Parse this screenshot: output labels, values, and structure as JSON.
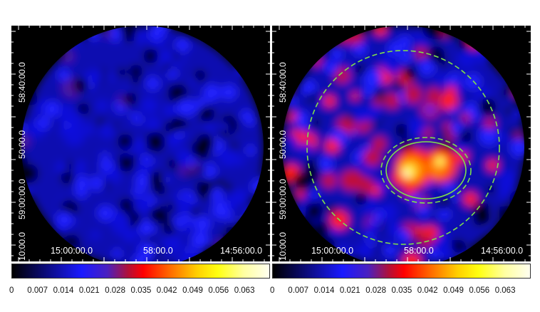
{
  "panels": [
    {
      "id": "left",
      "y_ticks": [
        "58:40:00.0",
        "50:00.0",
        "59:00:00.0",
        "10:00.0"
      ],
      "x_ticks": [
        "15:00:00.0",
        "58:00.0",
        "14:56:00.0"
      ],
      "regions": false
    },
    {
      "id": "right",
      "y_ticks": [
        "58:40:00.0",
        "50:00.0",
        "59:00:00.0",
        "10:00.0"
      ],
      "x_ticks": [
        "15:00:00.0",
        "58:00.0",
        "14:56:00.0"
      ],
      "regions": true,
      "region_color": "#7fe04a"
    }
  ],
  "colorbar": {
    "colormap": "heat",
    "ticks": [
      "0",
      "0.007",
      "0.014",
      "0.021",
      "0.028",
      "0.035",
      "0.042",
      "0.049",
      "0.056",
      "0.063"
    ],
    "range": [
      0,
      0.07
    ]
  }
}
